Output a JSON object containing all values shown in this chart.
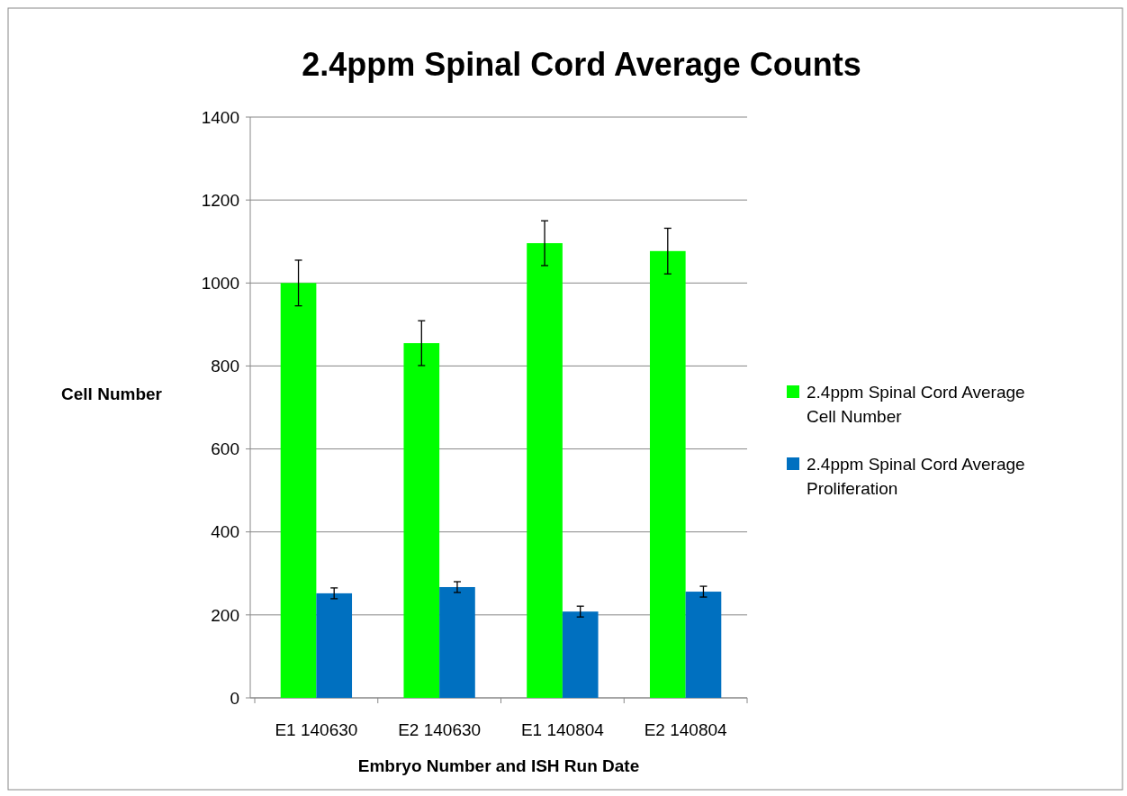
{
  "chart_data": {
    "type": "bar",
    "title": "2.4ppm Spinal Cord Average Counts",
    "xlabel": "Embryo Number and ISH Run Date",
    "ylabel": "Cell Number",
    "categories": [
      "E1 140630",
      "E2 140630",
      "E1 140804",
      "E2 140804"
    ],
    "series": [
      {
        "name": "2.4ppm Spinal Cord Average Cell Number",
        "color": "#00ff00",
        "values": [
          1000,
          855,
          1096,
          1077
        ],
        "errors": [
          55,
          54,
          54,
          55
        ]
      },
      {
        "name": "2.4ppm Spinal Cord Average Proliferation",
        "color": "#0070c0",
        "values": [
          252,
          267,
          208,
          256
        ],
        "errors": [
          13,
          13,
          13,
          13
        ]
      }
    ],
    "ylim": [
      0,
      1400
    ],
    "yticks": [
      0,
      200,
      400,
      600,
      800,
      1000,
      1200,
      1400
    ],
    "grid": "y",
    "legend": "right"
  }
}
